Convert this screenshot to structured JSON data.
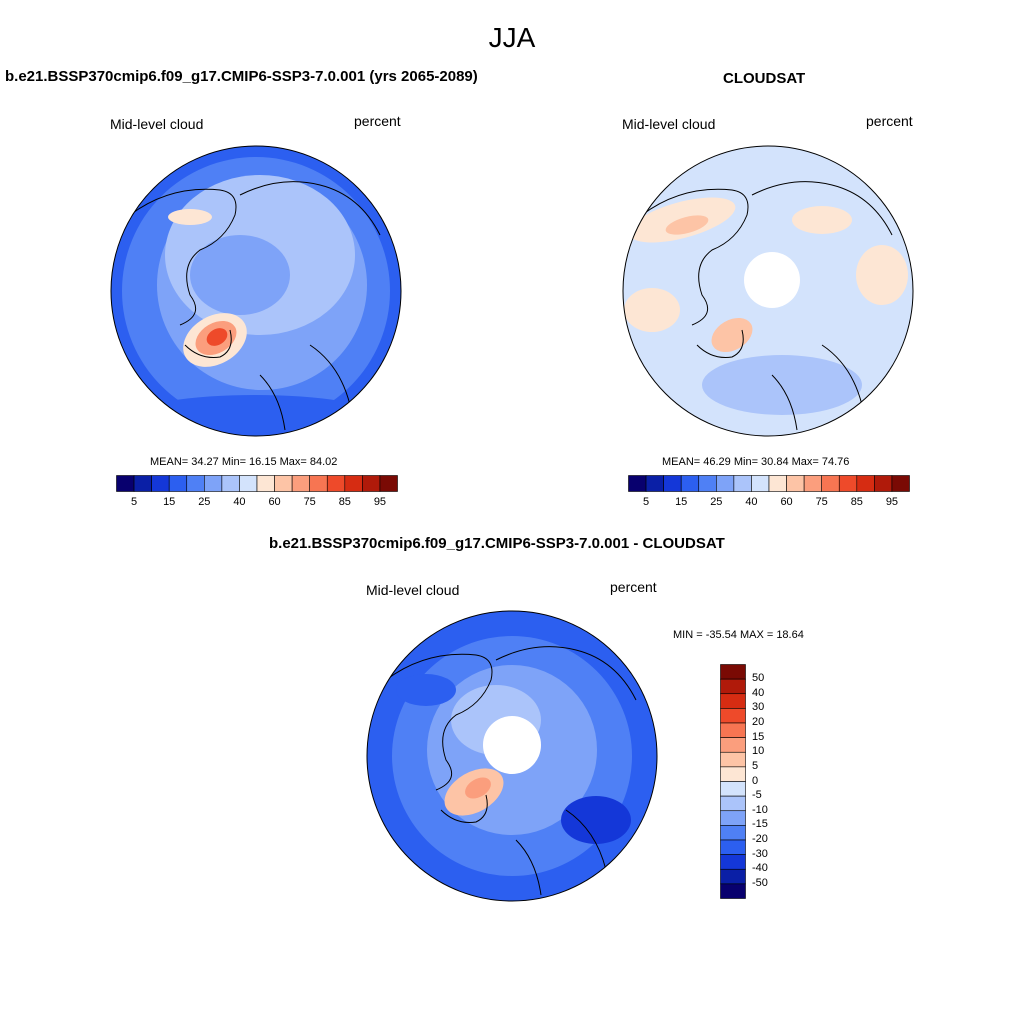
{
  "page_title": "JJA",
  "colors": {
    "seq": [
      "#08006e",
      "#0a1fa6",
      "#1437d8",
      "#2c5ff0",
      "#4f80f5",
      "#7ea3f8",
      "#abc4fa",
      "#d3e3fc",
      "#fde6d4",
      "#fdc4a6",
      "#fb9e7d",
      "#f77552",
      "#ee4a2a",
      "#d62c12",
      "#b01a0a",
      "#7a0a04"
    ],
    "diff": [
      "#08006e",
      "#0a1fa6",
      "#1437d8",
      "#2c5ff0",
      "#4f80f5",
      "#7ea3f8",
      "#abc4fa",
      "#d3e3fc",
      "#fde6d4",
      "#fdc4a6",
      "#fb9e7d",
      "#f77552",
      "#ee4a2a",
      "#d62c12",
      "#b01a0a",
      "#7a0a04"
    ],
    "coast": "#000000"
  },
  "panels": {
    "model": {
      "title": "b.e21.BSSP370cmip6.f09_g17.CMIP6-SSP3-7.0.001 (yrs 2065-2089)",
      "left_label": "Mid-level cloud",
      "right_label": "percent",
      "stats": "MEAN=  34.27  Min=  16.15  Max=  84.02"
    },
    "obs": {
      "title": "CLOUDSAT",
      "left_label": "Mid-level cloud",
      "right_label": "percent",
      "stats": "MEAN=  46.29  Min=  30.84  Max=  74.76"
    },
    "diff": {
      "title": "b.e21.BSSP370cmip6.f09_g17.CMIP6-SSP3-7.0.001 - CLOUDSAT",
      "left_label": "Mid-level cloud",
      "right_label": "percent",
      "stats": "MIN = -35.54 MAX =  18.64"
    }
  },
  "colorbar_ticks": [
    "5",
    "15",
    "25",
    "40",
    "60",
    "75",
    "85",
    "95"
  ],
  "diff_colorbar_ticks": [
    "50",
    "40",
    "30",
    "20",
    "15",
    "10",
    "5",
    "0",
    "-5",
    "-10",
    "-15",
    "-20",
    "-30",
    "-40",
    "-50"
  ]
}
